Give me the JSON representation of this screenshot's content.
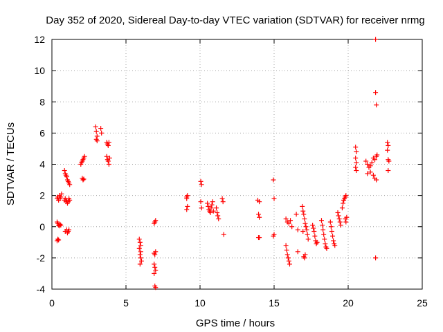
{
  "chart_data": {
    "type": "scatter",
    "title": "Day 352 of 2020, Sidereal Day-to-day VTEC variation (SDTVAR) for receiver nrmg",
    "xlabel": "GPS time / hours",
    "ylabel": "SDTVAR / TECUs",
    "xlim": [
      0,
      25
    ],
    "ylim": [
      -4,
      12
    ],
    "xticks": [
      0,
      5,
      10,
      15,
      20,
      25
    ],
    "yticks": [
      -4,
      -2,
      0,
      2,
      4,
      6,
      8,
      10,
      12
    ],
    "grid": true,
    "marker": "+",
    "color": "#ff0000",
    "series": [
      {
        "name": "nrmg",
        "points": [
          [
            0.35,
            -0.9
          ],
          [
            0.4,
            -0.8
          ],
          [
            0.45,
            -0.85
          ],
          [
            0.35,
            0.3
          ],
          [
            0.4,
            0.2
          ],
          [
            0.45,
            0.1
          ],
          [
            0.5,
            0.05
          ],
          [
            0.55,
            0.15
          ],
          [
            0.6,
            0.1
          ],
          [
            0.35,
            1.8
          ],
          [
            0.4,
            1.9
          ],
          [
            0.45,
            1.7
          ],
          [
            0.5,
            2.0
          ],
          [
            0.55,
            1.8
          ],
          [
            0.6,
            1.9
          ],
          [
            0.65,
            2.1
          ],
          [
            0.85,
            1.7
          ],
          [
            0.9,
            1.8
          ],
          [
            0.95,
            1.6
          ],
          [
            1.0,
            1.7
          ],
          [
            1.05,
            1.5
          ],
          [
            1.1,
            1.6
          ],
          [
            1.15,
            1.8
          ],
          [
            1.2,
            1.7
          ],
          [
            0.85,
            3.6
          ],
          [
            0.9,
            3.4
          ],
          [
            0.95,
            3.3
          ],
          [
            1.0,
            3.2
          ],
          [
            1.05,
            3.0
          ],
          [
            1.1,
            2.9
          ],
          [
            1.15,
            2.8
          ],
          [
            1.2,
            2.7
          ],
          [
            0.9,
            -0.3
          ],
          [
            1.0,
            -0.2
          ],
          [
            1.05,
            -0.4
          ],
          [
            1.1,
            -0.3
          ],
          [
            1.15,
            -0.2
          ],
          [
            1.95,
            4.0
          ],
          [
            2.0,
            4.1
          ],
          [
            2.05,
            4.2
          ],
          [
            2.1,
            4.3
          ],
          [
            2.15,
            4.4
          ],
          [
            2.2,
            4.5
          ],
          [
            2.05,
            3.1
          ],
          [
            2.1,
            3.0
          ],
          [
            2.15,
            3.05
          ],
          [
            2.95,
            6.4
          ],
          [
            3.0,
            6.1
          ],
          [
            3.05,
            5.8
          ],
          [
            3.0,
            5.6
          ],
          [
            3.05,
            5.5
          ],
          [
            3.3,
            6.3
          ],
          [
            3.35,
            6.0
          ],
          [
            3.7,
            5.4
          ],
          [
            3.75,
            5.3
          ],
          [
            3.8,
            5.2
          ],
          [
            3.85,
            5.4
          ],
          [
            3.7,
            4.5
          ],
          [
            3.75,
            4.3
          ],
          [
            3.8,
            4.2
          ],
          [
            3.85,
            4.0
          ],
          [
            3.9,
            4.4
          ],
          [
            5.9,
            -0.8
          ],
          [
            5.95,
            -1.0
          ],
          [
            6.0,
            -1.2
          ],
          [
            5.9,
            -1.4
          ],
          [
            6.0,
            -1.6
          ],
          [
            5.95,
            -1.8
          ],
          [
            6.0,
            -2.0
          ],
          [
            6.05,
            -2.2
          ],
          [
            5.95,
            -2.4
          ],
          [
            6.95,
            0.3
          ],
          [
            7.0,
            0.4
          ],
          [
            6.9,
            0.2
          ],
          [
            6.9,
            -1.7
          ],
          [
            6.95,
            -1.8
          ],
          [
            7.0,
            -1.6
          ],
          [
            6.9,
            -2.4
          ],
          [
            6.95,
            -2.6
          ],
          [
            7.0,
            -2.8
          ],
          [
            6.9,
            -3.0
          ],
          [
            6.95,
            -3.8
          ],
          [
            7.0,
            -3.9
          ],
          [
            9.1,
            1.9
          ],
          [
            9.15,
            2.0
          ],
          [
            9.1,
            1.8
          ],
          [
            9.15,
            1.3
          ],
          [
            9.1,
            1.1
          ],
          [
            10.05,
            2.9
          ],
          [
            10.1,
            2.7
          ],
          [
            10.05,
            1.6
          ],
          [
            10.1,
            1.2
          ],
          [
            10.5,
            1.5
          ],
          [
            10.55,
            1.3
          ],
          [
            10.6,
            1.1
          ],
          [
            10.65,
            1.0
          ],
          [
            10.7,
            0.9
          ],
          [
            10.75,
            1.2
          ],
          [
            10.8,
            1.4
          ],
          [
            10.85,
            1.6
          ],
          [
            10.9,
            1.0
          ],
          [
            11.1,
            1.2
          ],
          [
            11.15,
            0.9
          ],
          [
            11.2,
            0.7
          ],
          [
            11.25,
            0.5
          ],
          [
            11.5,
            1.8
          ],
          [
            11.55,
            1.6
          ],
          [
            11.6,
            -0.5
          ],
          [
            13.9,
            1.7
          ],
          [
            14.0,
            1.6
          ],
          [
            13.95,
            0.8
          ],
          [
            14.0,
            0.6
          ],
          [
            13.95,
            -0.7
          ],
          [
            14.0,
            -0.7
          ],
          [
            14.95,
            3.0
          ],
          [
            15.0,
            1.8
          ],
          [
            14.95,
            -0.6
          ],
          [
            15.0,
            -0.5
          ],
          [
            15.8,
            0.5
          ],
          [
            15.9,
            0.3
          ],
          [
            16.0,
            0.2
          ],
          [
            16.1,
            0.4
          ],
          [
            16.2,
            0.0
          ],
          [
            15.8,
            -1.2
          ],
          [
            15.85,
            -1.5
          ],
          [
            15.9,
            -1.8
          ],
          [
            15.95,
            -2.0
          ],
          [
            16.0,
            -2.2
          ],
          [
            16.05,
            -2.4
          ],
          [
            16.5,
            0.8
          ],
          [
            16.6,
            -0.2
          ],
          [
            16.6,
            -1.6
          ],
          [
            16.9,
            1.3
          ],
          [
            16.95,
            1.0
          ],
          [
            17.0,
            0.8
          ],
          [
            17.05,
            0.5
          ],
          [
            17.1,
            0.2
          ],
          [
            17.15,
            0.0
          ],
          [
            17.2,
            -0.2
          ],
          [
            17.25,
            -0.5
          ],
          [
            17.3,
            -0.8
          ],
          [
            16.95,
            -0.3
          ],
          [
            17.0,
            -1.9
          ],
          [
            17.05,
            -2.0
          ],
          [
            17.1,
            -1.8
          ],
          [
            17.6,
            0.1
          ],
          [
            17.65,
            -0.1
          ],
          [
            17.7,
            -0.3
          ],
          [
            17.75,
            -0.6
          ],
          [
            17.8,
            -0.9
          ],
          [
            17.85,
            -1.1
          ],
          [
            17.9,
            -1.0
          ],
          [
            18.2,
            0.4
          ],
          [
            18.25,
            0.1
          ],
          [
            18.3,
            -0.2
          ],
          [
            18.35,
            -0.5
          ],
          [
            18.4,
            -0.8
          ],
          [
            18.45,
            -1.1
          ],
          [
            18.5,
            -1.3
          ],
          [
            18.55,
            -1.4
          ],
          [
            18.8,
            0.3
          ],
          [
            18.85,
            0.0
          ],
          [
            18.9,
            -0.3
          ],
          [
            18.95,
            -0.6
          ],
          [
            19.0,
            -0.9
          ],
          [
            19.05,
            -1.1
          ],
          [
            19.1,
            -1.2
          ],
          [
            19.3,
            0.9
          ],
          [
            19.35,
            0.7
          ],
          [
            19.4,
            0.5
          ],
          [
            19.45,
            0.3
          ],
          [
            19.5,
            0.1
          ],
          [
            19.6,
            1.2
          ],
          [
            19.65,
            1.5
          ],
          [
            19.7,
            1.7
          ],
          [
            19.75,
            1.8
          ],
          [
            19.8,
            1.9
          ],
          [
            19.85,
            2.0
          ],
          [
            19.8,
            0.5
          ],
          [
            19.85,
            0.3
          ],
          [
            19.9,
            0.6
          ],
          [
            20.5,
            5.1
          ],
          [
            20.55,
            4.8
          ],
          [
            20.5,
            4.4
          ],
          [
            20.55,
            4.1
          ],
          [
            20.5,
            3.8
          ],
          [
            20.55,
            3.6
          ],
          [
            21.2,
            4.2
          ],
          [
            21.3,
            4.0
          ],
          [
            21.4,
            3.8
          ],
          [
            21.5,
            3.9
          ],
          [
            21.6,
            4.1
          ],
          [
            21.7,
            4.4
          ],
          [
            21.8,
            4.3
          ],
          [
            21.9,
            4.5
          ],
          [
            21.95,
            4.6
          ],
          [
            21.3,
            3.4
          ],
          [
            21.5,
            3.5
          ],
          [
            21.7,
            3.3
          ],
          [
            21.8,
            3.1
          ],
          [
            21.9,
            3.0
          ],
          [
            21.85,
            12.0
          ],
          [
            21.85,
            8.6
          ],
          [
            21.9,
            7.8
          ],
          [
            21.85,
            -2.0
          ],
          [
            22.65,
            5.4
          ],
          [
            22.7,
            5.2
          ],
          [
            22.65,
            4.9
          ],
          [
            22.7,
            4.3
          ],
          [
            22.75,
            4.2
          ],
          [
            22.7,
            3.6
          ]
        ]
      }
    ]
  }
}
